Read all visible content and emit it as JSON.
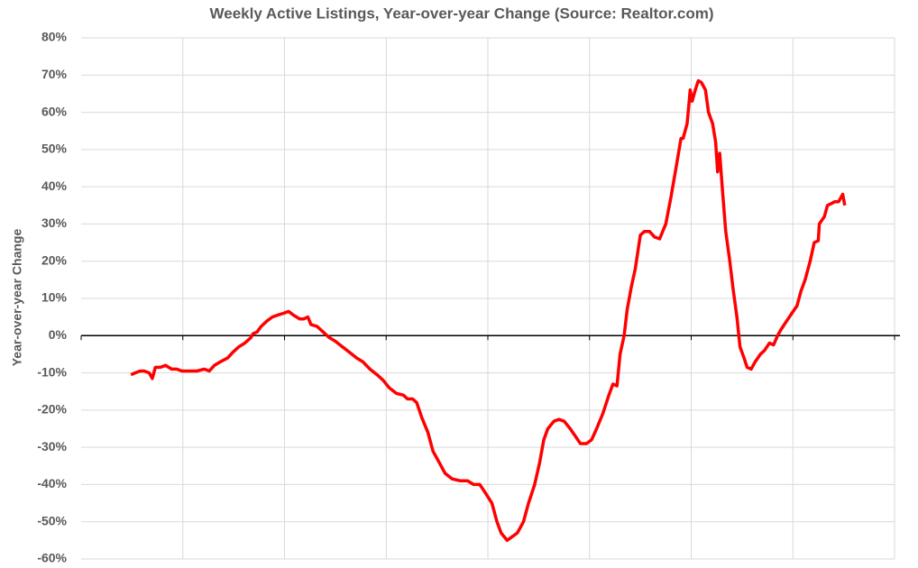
{
  "chart_data": {
    "type": "line",
    "title": "Weekly Active Listings, Year-over-year Change (Source: Realtor.com)",
    "y_label": "Year-over-year Change",
    "xlim": [
      0,
      8
    ],
    "ylim": [
      -60,
      80
    ],
    "yticks": [
      {
        "value": -60,
        "label": "-60%"
      },
      {
        "value": -50,
        "label": "-50%"
      },
      {
        "value": -40,
        "label": "-40%"
      },
      {
        "value": -30,
        "label": "-30%"
      },
      {
        "value": -20,
        "label": "-20%"
      },
      {
        "value": -10,
        "label": "-10%"
      },
      {
        "value": 0,
        "label": "0%"
      },
      {
        "value": 10,
        "label": "10%"
      },
      {
        "value": 20,
        "label": "20%"
      },
      {
        "value": 30,
        "label": "30%"
      },
      {
        "value": 40,
        "label": "40%"
      },
      {
        "value": 50,
        "label": "50%"
      },
      {
        "value": 60,
        "label": "60%"
      },
      {
        "value": 70,
        "label": "70%"
      },
      {
        "value": 80,
        "label": "80%"
      }
    ],
    "grid": true,
    "series": [
      {
        "color": "#ff0000",
        "x": [
          0.49,
          0.53,
          0.58,
          0.62,
          0.67,
          0.7,
          0.73,
          0.78,
          0.83,
          0.89,
          0.94,
          0.99,
          1.06,
          1.14,
          1.21,
          1.26,
          1.31,
          1.37,
          1.44,
          1.49,
          1.55,
          1.61,
          1.67,
          1.69,
          1.73,
          1.77,
          1.83,
          1.88,
          1.93,
          1.99,
          2.04,
          2.09,
          2.15,
          2.19,
          2.23,
          2.26,
          2.32,
          2.38,
          2.44,
          2.5,
          2.57,
          2.64,
          2.71,
          2.77,
          2.84,
          2.91,
          2.97,
          3.03,
          3.1,
          3.17,
          3.21,
          3.26,
          3.3,
          3.35,
          3.41,
          3.46,
          3.52,
          3.58,
          3.65,
          3.73,
          3.8,
          3.86,
          3.92,
          3.97,
          4.04,
          4.09,
          4.13,
          4.19,
          4.24,
          4.29,
          4.35,
          4.4,
          4.46,
          4.51,
          4.55,
          4.59,
          4.65,
          4.7,
          4.75,
          4.81,
          4.86,
          4.91,
          4.97,
          5.02,
          5.07,
          5.13,
          5.19,
          5.23,
          5.27,
          5.3,
          5.34,
          5.37,
          5.41,
          5.45,
          5.5,
          5.54,
          5.59,
          5.64,
          5.69,
          5.75,
          5.8,
          5.85,
          5.9,
          5.92,
          5.96,
          5.99,
          6.01,
          6.04,
          6.07,
          6.1,
          6.14,
          6.17,
          6.21,
          6.24,
          6.26,
          6.28,
          6.31,
          6.34,
          6.38,
          6.41,
          6.45,
          6.48,
          6.52,
          6.55,
          6.59,
          6.63,
          6.68,
          6.72,
          6.77,
          6.81,
          6.85,
          6.88,
          6.94,
          6.99,
          7.04,
          7.08,
          7.12,
          7.17,
          7.21,
          7.25,
          7.26,
          7.31,
          7.34,
          7.38,
          7.41,
          7.45,
          7.49,
          7.51
        ],
        "values": [
          -10.5,
          -10,
          -9.5,
          -9.5,
          -10,
          -11.5,
          -8.5,
          -8.5,
          -8,
          -9,
          -9,
          -9.5,
          -9.5,
          -9.5,
          -9,
          -9.5,
          -8,
          -7,
          -6,
          -4.5,
          -3,
          -2,
          -0.5,
          0.5,
          1,
          2.5,
          4,
          5,
          5.5,
          6,
          6.5,
          5.5,
          4.5,
          4.5,
          5,
          3,
          2.5,
          1,
          -0.5,
          -1.5,
          -3,
          -4.5,
          -6,
          -7,
          -9,
          -10.5,
          -12,
          -14,
          -15.5,
          -16,
          -17,
          -17,
          -18,
          -22,
          -26,
          -31,
          -34,
          -37,
          -38.5,
          -39,
          -39,
          -40,
          -40,
          -42,
          -45,
          -50,
          -53,
          -55,
          -54,
          -53,
          -50,
          -45,
          -40,
          -34,
          -28,
          -25,
          -23,
          -22.5,
          -23,
          -25,
          -27,
          -29,
          -29,
          -28,
          -25,
          -21,
          -16,
          -13,
          -13.5,
          -5,
          0,
          7,
          13,
          18,
          27,
          28,
          28,
          26.5,
          26,
          30,
          37,
          45,
          53,
          53,
          57,
          66,
          63,
          66,
          68.5,
          68,
          66,
          60,
          57,
          52,
          44,
          49,
          38,
          28,
          20,
          13,
          5,
          -3,
          -6,
          -8.5,
          -9,
          -7,
          -5,
          -4,
          -2,
          -2.5,
          0,
          1.5,
          4,
          6,
          8,
          12,
          15,
          20,
          25,
          25.5,
          30,
          32,
          35,
          35.5,
          36,
          36,
          38,
          35
        ]
      }
    ]
  }
}
